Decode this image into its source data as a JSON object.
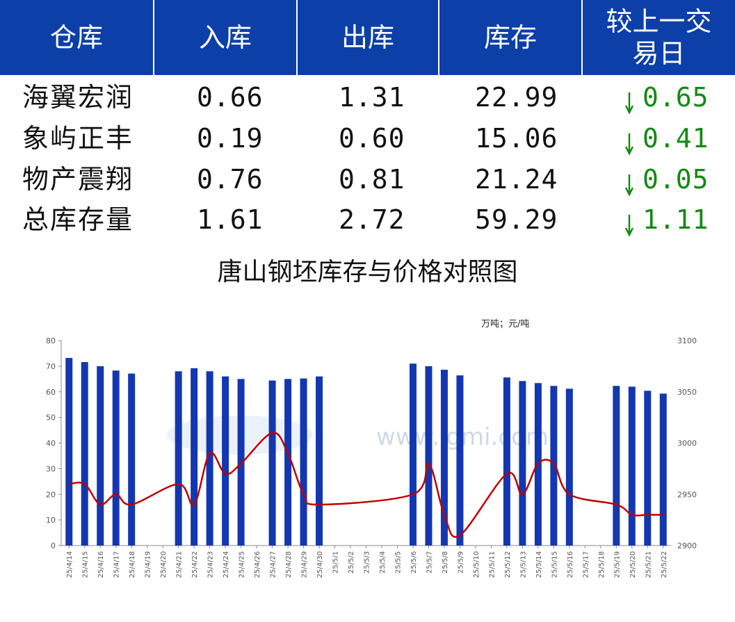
{
  "table": {
    "headers": [
      "仓库",
      "入库",
      "出库",
      "库存",
      "较上一交易日"
    ],
    "rows": [
      {
        "name": "海翼宏润",
        "in": "0.66",
        "out": "1.31",
        "stock": "22.99",
        "change": "0.65",
        "direction": "down"
      },
      {
        "name": "象屿正丰",
        "in": "0.19",
        "out": "0.60",
        "stock": "15.06",
        "change": "0.41",
        "direction": "down"
      },
      {
        "name": "物产震翔",
        "in": "0.76",
        "out": "0.81",
        "stock": "21.24",
        "change": "0.05",
        "direction": "down"
      },
      {
        "name": "总库存量",
        "in": "1.61",
        "out": "2.72",
        "stock": "59.29",
        "change": "1.11",
        "direction": "down"
      }
    ],
    "header_color": "#0d3fa8",
    "change_color": "#138a13"
  },
  "chart_data": {
    "type": "bar",
    "title": "唐山钢坯库存与价格对照图",
    "unit_label": "万吨；元/吨",
    "watermark": "www.lgmi.com",
    "categories": [
      "25/4/14",
      "25/4/15",
      "25/4/16",
      "25/4/17",
      "25/4/18",
      "25/4/19",
      "25/4/20",
      "25/4/21",
      "25/4/22",
      "25/4/23",
      "25/4/24",
      "25/4/25",
      "25/4/26",
      "25/4/27",
      "25/4/28",
      "25/4/29",
      "25/4/30",
      "25/5/1",
      "25/5/2",
      "25/5/3",
      "25/5/4",
      "25/5/5",
      "25/5/6",
      "25/5/7",
      "25/5/8",
      "25/5/9",
      "25/5/10",
      "25/5/11",
      "25/5/12",
      "25/5/13",
      "25/5/14",
      "25/5/15",
      "25/5/16",
      "25/5/17",
      "25/5/18",
      "25/5/19",
      "25/5/20",
      "25/5/21",
      "25/5/22"
    ],
    "series": [
      {
        "type": "bar",
        "axis": "left",
        "color": "#1337b0",
        "values": [
          73.2,
          71.6,
          70.0,
          68.3,
          67.1,
          null,
          null,
          68.0,
          69.2,
          68.0,
          66.0,
          65.0,
          null,
          64.4,
          65.0,
          65.2,
          66.0,
          null,
          null,
          null,
          null,
          null,
          71.0,
          70.0,
          68.6,
          66.4,
          null,
          null,
          65.6,
          64.2,
          63.4,
          62.3,
          61.2,
          null,
          null,
          62.3,
          62.0,
          60.4,
          59.3
        ]
      },
      {
        "type": "line",
        "axis": "right",
        "color": "#c00000",
        "values": [
          2960,
          2960,
          2940,
          2950,
          2940,
          null,
          null,
          2960,
          2940,
          2990,
          2970,
          2980,
          null,
          3010,
          2990,
          2950,
          2940,
          null,
          null,
          null,
          null,
          null,
          2950,
          2980,
          2930,
          2910,
          null,
          null,
          2970,
          2950,
          2980,
          2980,
          2950,
          null,
          null,
          2940,
          2930,
          2930,
          2930
        ]
      }
    ],
    "ylim_left": [
      0,
      80
    ],
    "yticks_left": [
      0,
      10,
      20,
      30,
      40,
      50,
      60,
      70,
      80
    ],
    "ylim_right": [
      2900,
      3100
    ],
    "yticks_right": [
      2900,
      2950,
      3000,
      3050,
      3100
    ],
    "grid": false,
    "legend": "none"
  }
}
